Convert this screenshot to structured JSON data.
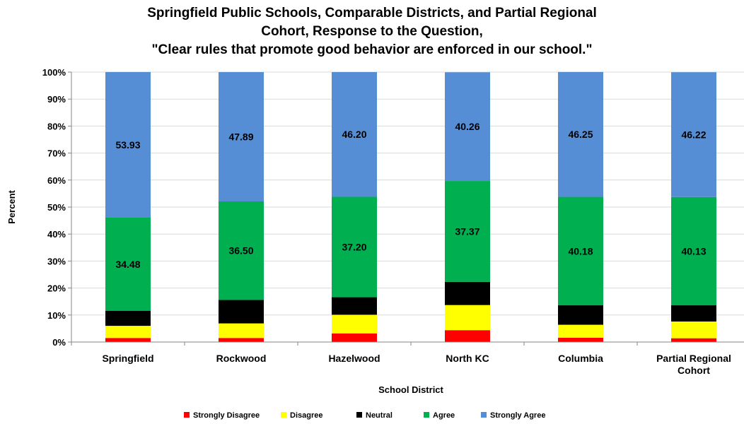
{
  "chart_data": {
    "type": "bar",
    "stacked": true,
    "title_lines": [
      "Springfield Public Schools, Comparable Districts, and Partial Regional",
      "Cohort, Response to the Question,",
      "\"Clear rules that promote good behavior are enforced in our school.\""
    ],
    "xlabel": "School District",
    "ylabel": "Percent",
    "ylim": [
      0,
      100
    ],
    "y_ticks": [
      "0%",
      "10%",
      "20%",
      "30%",
      "40%",
      "50%",
      "60%",
      "70%",
      "80%",
      "90%",
      "100%"
    ],
    "grid": true,
    "legend_position": "bottom",
    "categories": [
      [
        "Springfield"
      ],
      [
        "Rockwood"
      ],
      [
        "Hazelwood"
      ],
      [
        "North KC"
      ],
      [
        "Columbia"
      ],
      [
        "Partial Regional",
        "Cohort"
      ]
    ],
    "series": [
      {
        "name": "Strongly Disagree",
        "color": "#ff0000",
        "values": [
          1.5,
          1.5,
          3.2,
          4.4,
          1.6,
          1.4
        ],
        "show_labels": false
      },
      {
        "name": "Disagree",
        "color": "#ffff00",
        "values": [
          4.5,
          5.4,
          6.9,
          9.3,
          4.8,
          6.2
        ],
        "show_labels": false
      },
      {
        "name": "Neutral",
        "color": "#000000",
        "values": [
          5.6,
          8.7,
          6.5,
          8.6,
          7.2,
          6.0
        ],
        "show_labels": false
      },
      {
        "name": "Agree",
        "color": "#00b050",
        "values": [
          34.48,
          36.5,
          37.2,
          37.37,
          40.18,
          40.13
        ],
        "show_labels": true
      },
      {
        "name": "Strongly Agree",
        "color": "#558ed5",
        "values": [
          53.93,
          47.89,
          46.2,
          40.26,
          46.25,
          46.22
        ],
        "show_labels": true
      }
    ],
    "data_labels": {
      "Agree": [
        "34.48",
        "36.50",
        "37.20",
        "37.37",
        "40.18",
        "40.13"
      ],
      "Strongly Agree": [
        "53.93",
        "47.89",
        "46.20",
        "40.26",
        "46.25",
        "46.22"
      ]
    }
  }
}
